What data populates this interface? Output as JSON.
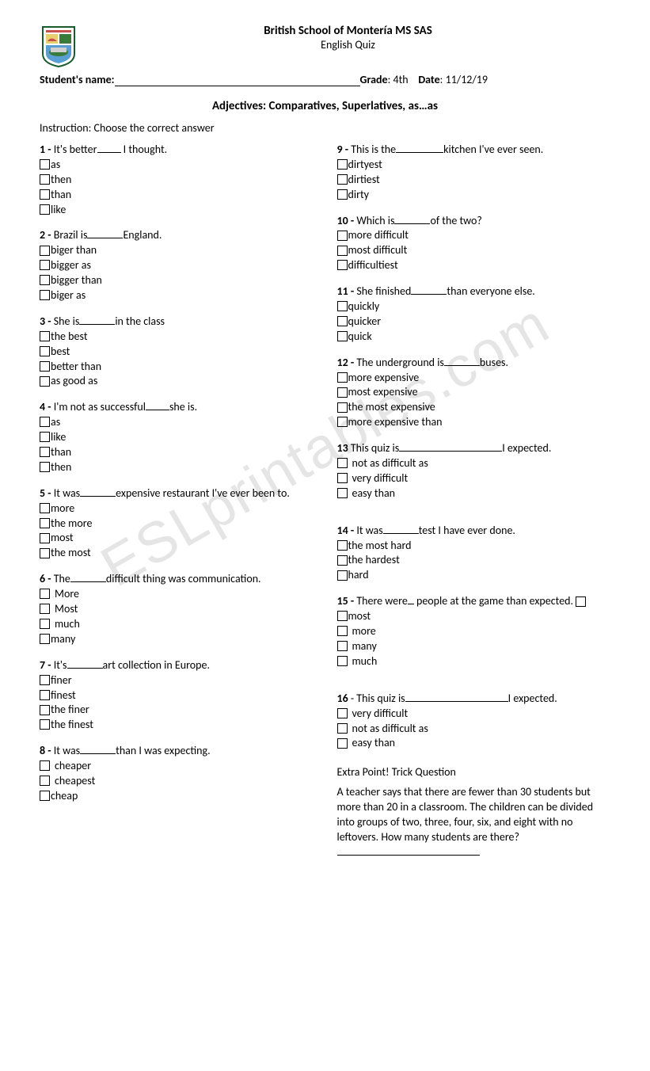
{
  "watermark": "ESLprintables.com",
  "header": {
    "school_name": "British School of Montería MS SAS",
    "quiz_label": "English Quiz",
    "student_label": "Student's name:",
    "grade_label": "Grade",
    "grade_value": "4th",
    "date_label": "Date",
    "date_value": "11/12/19"
  },
  "topic": "Adjectives: Comparatives, Superlatives, as…as",
  "instruction": "Instruction: Choose the correct answer",
  "left": [
    {
      "num": "1 -",
      "pre": "It's better",
      "blank": "blank4",
      "post": " I thought.",
      "opts": [
        "as",
        "then",
        "than",
        "like"
      ],
      "sp": false
    },
    {
      "num": "2 -",
      "pre": "Brazil is",
      "blank": "blank6",
      "post": "England.",
      "opts": [
        "biger than",
        "bigger as",
        "bigger than",
        "biger as"
      ],
      "sp": false
    },
    {
      "num": "3 -",
      "pre": "She is",
      "blank": "blank6",
      "post": "in the class",
      "opts": [
        "the best",
        "best",
        "better than",
        "as good as"
      ],
      "sp": false
    },
    {
      "num": "4 -",
      "pre": "I'm not as successful",
      "blank": "blank4",
      "post": "she is.",
      "opts": [
        "as",
        "like",
        "than",
        "then"
      ],
      "sp": false
    },
    {
      "num": "5 -",
      "pre": "It was",
      "blank": "blank6",
      "post": "expensive restaurant I've ever been to.",
      "opts": [
        "more",
        "the more",
        "most",
        "the most"
      ],
      "sp": false
    },
    {
      "num": "6 -",
      "pre": "The",
      "blank": "blank6",
      "post": "difficult thing was communication.",
      "opts": [
        "More",
        "Most",
        "much",
        "many"
      ],
      "sp": true,
      "last_nosp": true
    },
    {
      "num": "7 -",
      "pre": "It's",
      "blank": "blank6",
      "post": "art collection in Europe.",
      "opts": [
        "finer",
        "finest",
        "the finer",
        "the finest"
      ],
      "sp": false
    },
    {
      "num": "8 -",
      "pre": "It was",
      "blank": "blank6",
      "post": "than I was expecting.",
      "opts": [
        "cheaper",
        "cheapest",
        "cheap"
      ],
      "sp": true,
      "last_nosp": true
    }
  ],
  "right": [
    {
      "num": "9 -",
      "pre": "This is the",
      "blank": "blank8",
      "post": "kitchen I've ever seen.",
      "opts": [
        "dirtyest",
        "dirtiest",
        "dirty"
      ],
      "sp": false
    },
    {
      "num": "10 -",
      "pre": "Which is",
      "blank": "blank6",
      "post": "of the two?",
      "opts": [
        "more difficult",
        "most difficult",
        "difficultiest"
      ],
      "sp": false
    },
    {
      "num": "11 -",
      "pre": "She finished",
      "blank": "blank6",
      "post": "than everyone else.",
      "opts": [
        "quickly",
        "quicker",
        "quick"
      ],
      "sp": false
    },
    {
      "num": "12 -",
      "pre": "The underground is",
      "blank": "blank6",
      "post": "buses.",
      "opts": [
        "more expensive",
        "most  expensive",
        "the most expensive",
        "more expensive than"
      ],
      "sp": false
    },
    {
      "num": "13",
      "pre": "This quiz is",
      "blank": "blanklong",
      "post": "I expected.",
      "opts": [
        "not as difficult as",
        "very difficult",
        "easy than"
      ],
      "sp": true
    },
    {
      "num": "14 -",
      "pre": "It was",
      "blank": "blank6",
      "post": "test I have ever done.",
      "opts": [
        "the most hard",
        "the hardest",
        "hard"
      ],
      "sp": false,
      "mt": true
    },
    {
      "num": "15 -",
      "pre": "There were",
      "blank": "blank1",
      "post": " people at the game than expected.",
      "trail_box": true,
      "opts": [
        "most",
        "more",
        "many",
        "much"
      ],
      "sp": true,
      "first_nosp": true
    },
    {
      "num": "16",
      "pre": "- This quiz is",
      "blank": "blanklong",
      "post": "I expected.",
      "opts": [
        "very difficult",
        "not as difficult as",
        "easy than"
      ],
      "sp": true,
      "mt": true
    }
  ],
  "extra": {
    "title": "Extra Point! Trick Question",
    "text": "A teacher says that there are fewer than 30 students but more than 20 in a classroom. The children can be divided into groups of two, three, four, six, and eight with no leftovers. How many students are there?"
  }
}
